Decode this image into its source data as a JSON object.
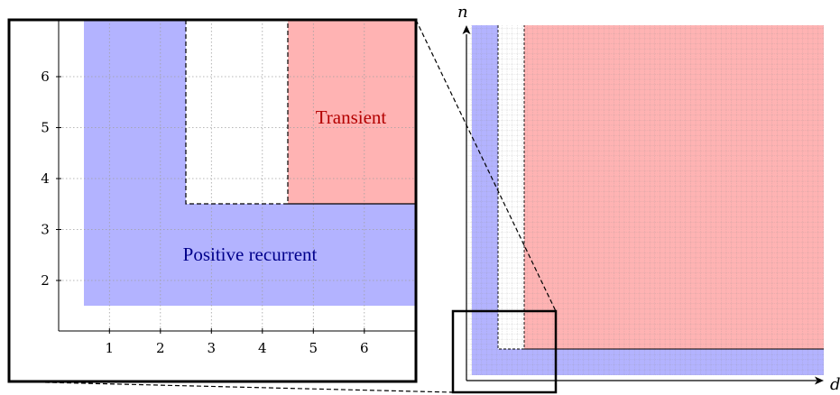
{
  "colors": {
    "positive_recurrent_fill": "#b3b3ff",
    "transient_fill": "#ffb3b3",
    "positive_recurrent_text": "#00008b",
    "transient_text": "#b30000",
    "grid": "#a0a0a0"
  },
  "zoom_panel": {
    "x_ticks": [
      "1",
      "2",
      "3",
      "4",
      "5",
      "6"
    ],
    "y_ticks": [
      "2",
      "3",
      "4",
      "5",
      "6"
    ],
    "transient_label": "Transient",
    "positive_recurrent_label": "Positive recurrent"
  },
  "overview_panel": {
    "x_axis_label": "d",
    "y_axis_label": "n"
  }
}
